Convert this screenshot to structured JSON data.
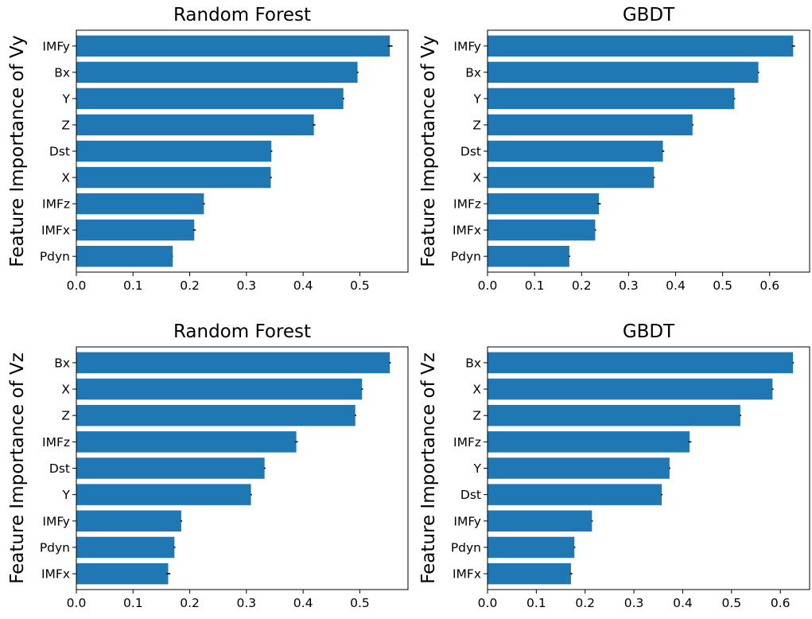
{
  "chart_data": [
    {
      "type": "bar",
      "orientation": "horizontal",
      "title": "Random Forest",
      "ylabel": "Feature Importance of Vy",
      "categories": [
        "IMFy",
        "Bx",
        "Y",
        "Z",
        "Dst",
        "X",
        "IMFz",
        "IMFx",
        "Pdyn"
      ],
      "values": [
        0.553,
        0.496,
        0.471,
        0.419,
        0.344,
        0.343,
        0.225,
        0.208,
        0.17
      ],
      "errors": [
        0.004,
        0.001,
        0.001,
        0.002,
        0.001,
        0.001,
        0.001,
        0.002,
        0.0
      ],
      "xlim": [
        0,
        0.585
      ],
      "xticks": [
        "0.0",
        "0.1",
        "0.2",
        "0.3",
        "0.4",
        "0.5"
      ],
      "xtick_values": [
        0,
        0.1,
        0.2,
        0.3,
        0.4,
        0.5
      ],
      "bar_color": "#1f77b4",
      "grid": false
    },
    {
      "type": "bar",
      "orientation": "horizontal",
      "title": "GBDT",
      "ylabel": "Feature Importance of Vy",
      "categories": [
        "IMFy",
        "Bx",
        "Y",
        "Z",
        "Dst",
        "X",
        "IMFz",
        "IMFx",
        "Pdyn"
      ],
      "values": [
        0.65,
        0.576,
        0.525,
        0.436,
        0.373,
        0.354,
        0.237,
        0.229,
        0.174
      ],
      "errors": [
        0.003,
        0.001,
        0.001,
        0.001,
        0.002,
        0.001,
        0.003,
        0.001,
        0.001
      ],
      "xlim": [
        0,
        0.685
      ],
      "xticks": [
        "0.0",
        "0.1",
        "0.2",
        "0.3",
        "0.4",
        "0.5",
        "0.6"
      ],
      "xtick_values": [
        0,
        0.1,
        0.2,
        0.3,
        0.4,
        0.5,
        0.6
      ],
      "bar_color": "#1f77b4",
      "grid": false
    },
    {
      "type": "bar",
      "orientation": "horizontal",
      "title": "Random Forest",
      "ylabel": "Feature Importance of Vz",
      "categories": [
        "Bx",
        "X",
        "Z",
        "IMFz",
        "Dst",
        "Y",
        "IMFy",
        "Pdyn",
        "IMFx"
      ],
      "values": [
        0.553,
        0.504,
        0.492,
        0.388,
        0.332,
        0.308,
        0.185,
        0.173,
        0.162
      ],
      "errors": [
        0.001,
        0.001,
        0.001,
        0.002,
        0.001,
        0.001,
        0.001,
        0.001,
        0.003
      ],
      "xlim": [
        0,
        0.585
      ],
      "xticks": [
        "0.0",
        "0.1",
        "0.2",
        "0.3",
        "0.4",
        "0.5"
      ],
      "xtick_values": [
        0,
        0.1,
        0.2,
        0.3,
        0.4,
        0.5
      ],
      "bar_color": "#1f77b4",
      "grid": false
    },
    {
      "type": "bar",
      "orientation": "horizontal",
      "title": "GBDT",
      "ylabel": "Feature Importance of Vz",
      "categories": [
        "Bx",
        "X",
        "Z",
        "IMFz",
        "Y",
        "Dst",
        "IMFy",
        "Pdyn",
        "IMFx"
      ],
      "values": [
        0.626,
        0.584,
        0.518,
        0.414,
        0.373,
        0.357,
        0.214,
        0.178,
        0.171
      ],
      "errors": [
        0.001,
        0.001,
        0.001,
        0.003,
        0.001,
        0.001,
        0.001,
        0.001,
        0.002
      ],
      "xlim": [
        0,
        0.66
      ],
      "xticks": [
        "0.0",
        "0.1",
        "0.2",
        "0.3",
        "0.4",
        "0.5",
        "0.6"
      ],
      "xtick_values": [
        0,
        0.1,
        0.2,
        0.3,
        0.4,
        0.5,
        0.6
      ],
      "bar_color": "#1f77b4",
      "grid": false
    }
  ]
}
